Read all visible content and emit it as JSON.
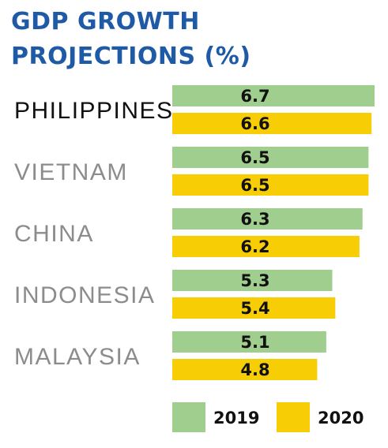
{
  "chart_data": {
    "type": "bar",
    "orientation": "horizontal",
    "title_lines": [
      "GDP GROWTH",
      "PROJECTIONS (%)"
    ],
    "categories": [
      "PHILIPPINES",
      "VIETNAM",
      "CHINA",
      "INDONESIA",
      "MALAYSIA"
    ],
    "series": [
      {
        "name": "2019",
        "color": "#9fce8e",
        "values": [
          6.7,
          6.5,
          6.3,
          5.3,
          5.1
        ]
      },
      {
        "name": "2020",
        "color": "#f7cd05",
        "values": [
          6.6,
          6.5,
          6.2,
          5.4,
          4.8
        ]
      }
    ],
    "xlim": [
      0,
      6.7
    ],
    "grid": false,
    "legend_position": "bottom",
    "colors": {
      "title": "#1f5aa6",
      "highlight_label": "#111111",
      "label": "#8c8c8c"
    }
  }
}
